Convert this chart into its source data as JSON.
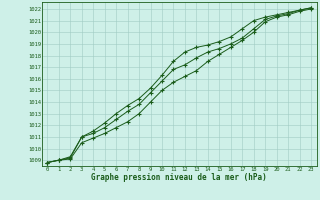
{
  "x": [
    0,
    1,
    2,
    3,
    4,
    5,
    6,
    7,
    8,
    9,
    10,
    11,
    12,
    13,
    14,
    15,
    16,
    17,
    18,
    19,
    20,
    21,
    22,
    23
  ],
  "line1": [
    1008.8,
    1009.0,
    1009.3,
    1011.0,
    1011.5,
    1012.2,
    1013.0,
    1013.7,
    1014.3,
    1015.2,
    1016.3,
    1017.5,
    1018.3,
    1018.7,
    1018.9,
    1019.2,
    1019.6,
    1020.3,
    1021.0,
    1021.3,
    1021.5,
    1021.7,
    1021.9,
    1022.1
  ],
  "line2": [
    1008.8,
    1009.0,
    1009.2,
    1011.0,
    1011.3,
    1011.8,
    1012.5,
    1013.2,
    1013.8,
    1014.8,
    1015.8,
    1016.8,
    1017.2,
    1017.8,
    1018.3,
    1018.6,
    1019.0,
    1019.5,
    1020.3,
    1021.1,
    1021.4,
    1021.6,
    1021.9,
    1022.1
  ],
  "line3": [
    1008.8,
    1009.0,
    1009.1,
    1010.5,
    1010.9,
    1011.3,
    1011.8,
    1012.3,
    1013.0,
    1014.0,
    1015.0,
    1015.7,
    1016.2,
    1016.7,
    1017.5,
    1018.1,
    1018.7,
    1019.3,
    1020.0,
    1020.9,
    1021.3,
    1021.5,
    1021.8,
    1022.0
  ],
  "line_color": "#1a5c1a",
  "bg_color": "#cef0e8",
  "grid_color": "#a0ccc4",
  "title": "Graphe pression niveau de la mer (hPa)",
  "yticks": [
    1009,
    1010,
    1011,
    1012,
    1013,
    1014,
    1015,
    1016,
    1017,
    1018,
    1019,
    1020,
    1021,
    1022
  ],
  "ylim": [
    1008.5,
    1022.6
  ],
  "xlim": [
    -0.5,
    23.5
  ]
}
